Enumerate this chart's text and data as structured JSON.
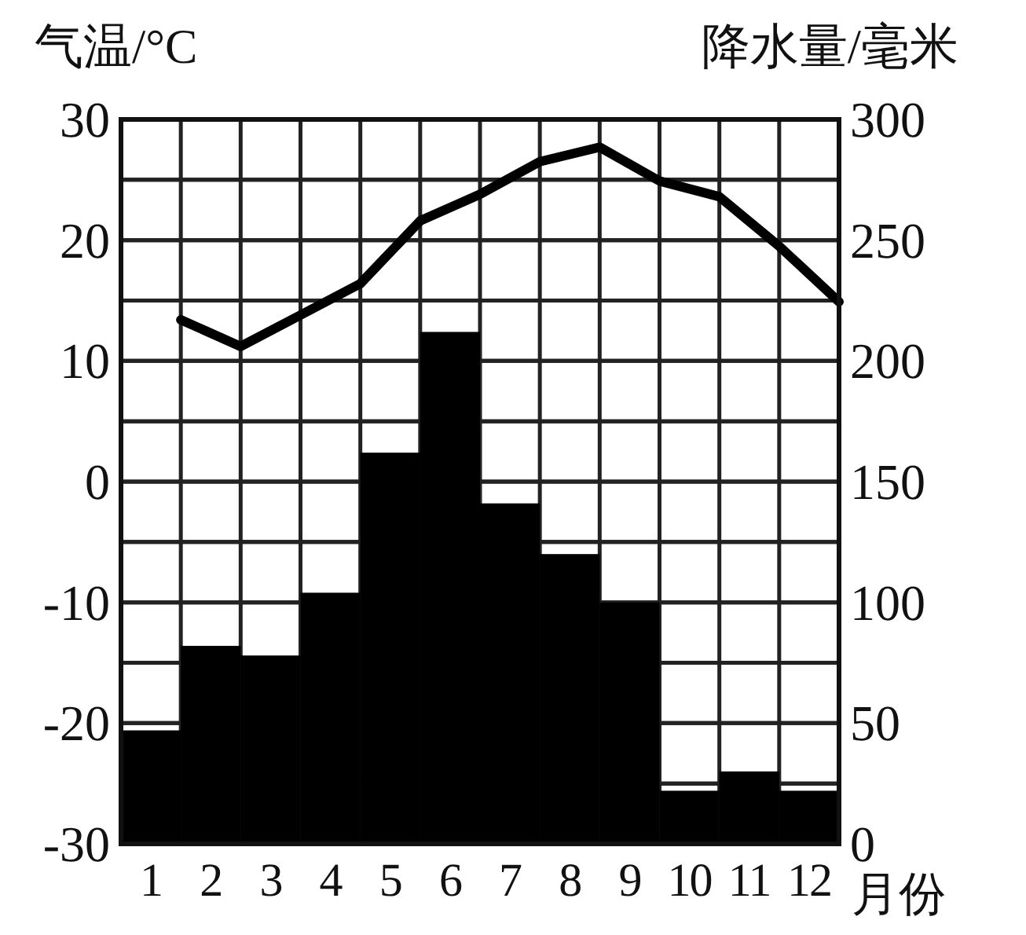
{
  "chart_data": {
    "type": "bar",
    "ylabel": "气温/°C",
    "y2label": "降水量/毫米",
    "xlabel": "月份",
    "xlim": [
      0.5,
      12.5
    ],
    "xticks": [
      {
        "value": 0.5,
        "label": null
      },
      1,
      {
        "value": 1.5,
        "label": null
      },
      2,
      {
        "value": 2.5,
        "label": null
      },
      3,
      {
        "value": 3.5,
        "label": null
      },
      4,
      {
        "value": 4.5,
        "label": null
      },
      5,
      {
        "value": 5.5,
        "label": null
      },
      6,
      {
        "value": 6.5,
        "label": null
      },
      7,
      {
        "value": 7.5,
        "label": null
      },
      8,
      {
        "value": 8.5,
        "label": null
      },
      9,
      {
        "value": 9.5,
        "label": null
      },
      10,
      {
        "value": 10.5,
        "label": null
      },
      11,
      {
        "value": 11.5,
        "label": null
      },
      12,
      {
        "value": 12.5,
        "label": null
      }
    ],
    "ylim": [
      -30,
      30
    ],
    "yticks": [
      -30,
      {
        "value": -25,
        "label": null
      },
      -20,
      {
        "value": -15,
        "label": null
      },
      -10,
      {
        "value": -5,
        "label": null
      },
      0,
      {
        "value": 5,
        "label": null
      },
      10,
      {
        "value": 15,
        "label": null
      },
      20,
      {
        "value": 25,
        "label": null
      },
      30
    ],
    "y2lim": [
      0,
      300
    ],
    "y2ticks": [
      0,
      {
        "value": 25,
        "label": null
      },
      50,
      {
        "value": 75,
        "label": null
      },
      100,
      {
        "value": 125,
        "label": null
      },
      150,
      {
        "value": 175,
        "label": null
      },
      200,
      {
        "value": 225,
        "label": null
      },
      250,
      {
        "value": 275,
        "label": null
      },
      300
    ],
    "grid": true,
    "series": [
      {
        "axis": "y2",
        "color": "#000000",
        "x": [
          1,
          2,
          3,
          4,
          5,
          6,
          7,
          8,
          9,
          10,
          11,
          12
        ],
        "values": [
          47,
          82,
          78,
          104,
          162,
          212,
          141,
          120,
          100,
          22,
          30,
          22
        ]
      },
      {
        "type": "line",
        "axis": "y",
        "color": "#000000",
        "x": [
          1.5,
          2.5,
          3.5,
          4.5,
          5.5,
          6.5,
          7.5,
          8.5,
          9.5,
          10.5,
          11.5,
          12.5
        ],
        "values": [
          13.4,
          11.2,
          13.8,
          16.4,
          21.6,
          23.8,
          26.5,
          27.7,
          24.9,
          23.6,
          19.5,
          14.9
        ]
      }
    ]
  }
}
